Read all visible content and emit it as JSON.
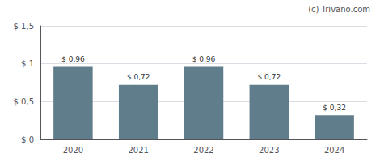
{
  "chart_data": {
    "type": "bar",
    "categories": [
      "2020",
      "2021",
      "2022",
      "2023",
      "2024"
    ],
    "values": [
      0.96,
      0.72,
      0.96,
      0.72,
      0.32
    ],
    "value_labels": [
      "$ 0,96",
      "$ 0,72",
      "$ 0,96",
      "$ 0,72",
      "$ 0,32"
    ],
    "data_labels": true,
    "color": "#607d8b",
    "ylim": [
      0,
      1.5
    ],
    "yticks": [
      {
        "value": 0,
        "label": "$ 0"
      },
      {
        "value": 0.5,
        "label": "$ 0,5"
      },
      {
        "value": 1.0,
        "label": "$ 1"
      },
      {
        "value": 1.5,
        "label": "$ 1,5"
      }
    ],
    "grid": true,
    "annotations": [
      "(c) Trivano.com"
    ]
  }
}
